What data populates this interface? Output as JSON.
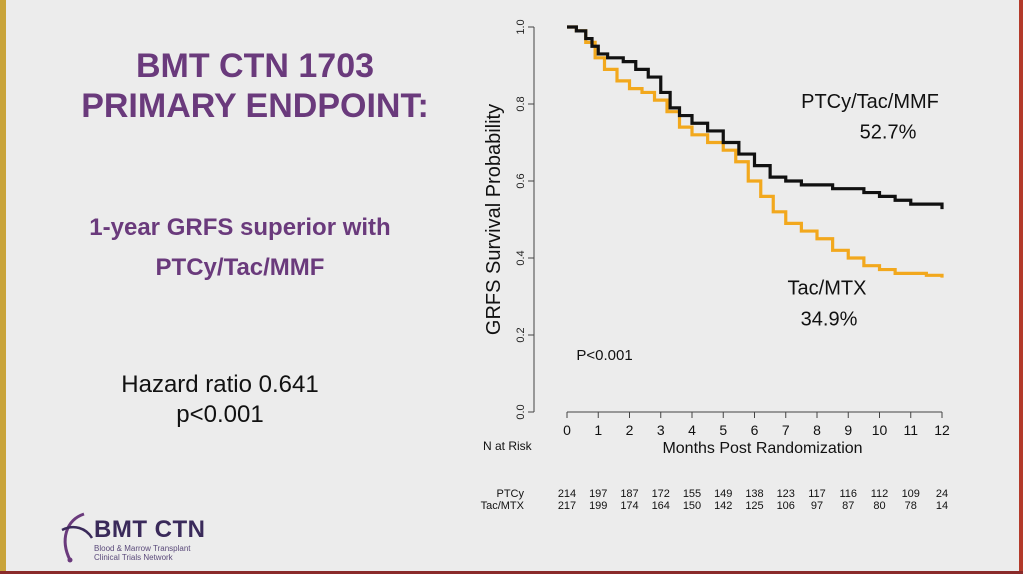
{
  "slide": {
    "title_line1": "BMT CTN 1703",
    "title_line2": "PRIMARY ENDPOINT:",
    "subtitle_line1": "1-year GRFS superior with",
    "subtitle_line2": "PTCy/Tac/MMF",
    "hazard_line1": "Hazard ratio 0.641",
    "hazard_line2": "p<0.001",
    "logo_name": "BMT CTN",
    "logo_tag_line1": "Blood & Marrow Transplant",
    "logo_tag_line2": "Clinical Trials Network"
  },
  "colors": {
    "title": "#6a3a7c",
    "ptcy": "#111111",
    "tacmtx": "#f2a81d"
  },
  "chart_data": {
    "type": "line",
    "xlabel": "Months Post Randomization",
    "ylabel": "GRFS Survival Probability",
    "xlim": [
      0,
      12
    ],
    "ylim": [
      0.0,
      1.0
    ],
    "x_ticks": [
      0,
      1,
      2,
      3,
      4,
      5,
      6,
      7,
      8,
      9,
      10,
      11,
      12
    ],
    "y_ticks": [
      "0.0",
      "0.2",
      "0.4",
      "0.6",
      "0.8",
      "1.0"
    ],
    "grid": false,
    "p_value_annotation": "P<0.001",
    "series": [
      {
        "name": "PTCy/Tac/MMF",
        "label_line1": "PTCy/Tac/MMF",
        "label_line2": "52.7%",
        "points": [
          [
            0,
            1.0
          ],
          [
            0.3,
            0.99
          ],
          [
            0.6,
            0.97
          ],
          [
            0.8,
            0.95
          ],
          [
            1.0,
            0.93
          ],
          [
            1.3,
            0.92
          ],
          [
            1.8,
            0.91
          ],
          [
            2.2,
            0.89
          ],
          [
            2.6,
            0.87
          ],
          [
            3.0,
            0.83
          ],
          [
            3.3,
            0.79
          ],
          [
            3.6,
            0.77
          ],
          [
            4.0,
            0.75
          ],
          [
            4.5,
            0.73
          ],
          [
            5.0,
            0.7
          ],
          [
            5.5,
            0.67
          ],
          [
            6.0,
            0.64
          ],
          [
            6.5,
            0.61
          ],
          [
            7.0,
            0.6
          ],
          [
            7.5,
            0.59
          ],
          [
            8.0,
            0.59
          ],
          [
            8.5,
            0.58
          ],
          [
            9.0,
            0.58
          ],
          [
            9.5,
            0.57
          ],
          [
            10.0,
            0.56
          ],
          [
            10.5,
            0.55
          ],
          [
            11.0,
            0.54
          ],
          [
            11.5,
            0.54
          ],
          [
            12.0,
            0.527
          ]
        ]
      },
      {
        "name": "Tac/MTX",
        "label_line1": "Tac/MTX",
        "label_line2": "34.9%",
        "points": [
          [
            0,
            1.0
          ],
          [
            0.3,
            0.99
          ],
          [
            0.6,
            0.96
          ],
          [
            0.9,
            0.92
          ],
          [
            1.2,
            0.89
          ],
          [
            1.6,
            0.86
          ],
          [
            2.0,
            0.84
          ],
          [
            2.4,
            0.83
          ],
          [
            2.8,
            0.81
          ],
          [
            3.2,
            0.78
          ],
          [
            3.6,
            0.74
          ],
          [
            4.0,
            0.72
          ],
          [
            4.5,
            0.7
          ],
          [
            5.0,
            0.68
          ],
          [
            5.4,
            0.65
          ],
          [
            5.8,
            0.6
          ],
          [
            6.2,
            0.56
          ],
          [
            6.6,
            0.52
          ],
          [
            7.0,
            0.49
          ],
          [
            7.5,
            0.47
          ],
          [
            8.0,
            0.45
          ],
          [
            8.5,
            0.42
          ],
          [
            9.0,
            0.4
          ],
          [
            9.5,
            0.38
          ],
          [
            10.0,
            0.37
          ],
          [
            10.5,
            0.36
          ],
          [
            11.0,
            0.36
          ],
          [
            11.5,
            0.355
          ],
          [
            12.0,
            0.349
          ]
        ]
      }
    ],
    "risk_table": {
      "header": "N at Risk",
      "rows": [
        {
          "label": "PTCy",
          "values": [
            "214",
            "197",
            "187",
            "172",
            "155",
            "149",
            "138",
            "123",
            "117",
            "116",
            "112",
            "109",
            "24"
          ]
        },
        {
          "label": "Tac/MTX",
          "values": [
            "217",
            "199",
            "174",
            "164",
            "150",
            "142",
            "125",
            "106",
            "97",
            "87",
            "80",
            "78",
            "14"
          ]
        }
      ]
    }
  }
}
